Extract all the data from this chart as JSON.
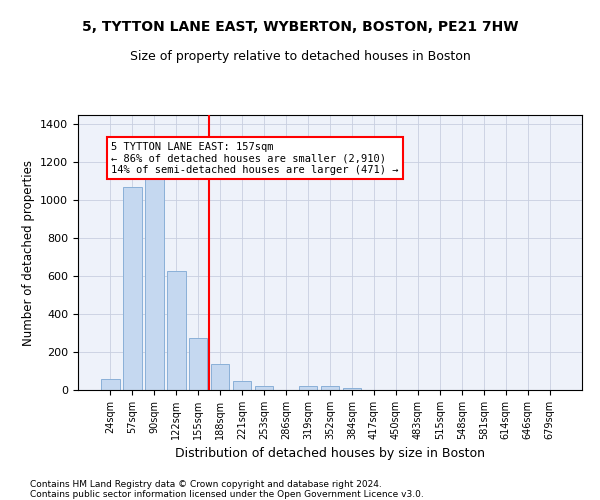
{
  "title_line1": "5, TYTTON LANE EAST, WYBERTON, BOSTON, PE21 7HW",
  "title_line2": "Size of property relative to detached houses in Boston",
  "xlabel": "Distribution of detached houses by size in Boston",
  "ylabel": "Number of detached properties",
  "bar_color": "#c5d8f0",
  "bar_edge_color": "#8ab0d8",
  "categories": [
    "24sqm",
    "57sqm",
    "90sqm",
    "122sqm",
    "155sqm",
    "188sqm",
    "221sqm",
    "253sqm",
    "286sqm",
    "319sqm",
    "352sqm",
    "384sqm",
    "417sqm",
    "450sqm",
    "483sqm",
    "515sqm",
    "548sqm",
    "581sqm",
    "614sqm",
    "646sqm",
    "679sqm"
  ],
  "values": [
    60,
    1070,
    1155,
    630,
    275,
    135,
    45,
    20,
    0,
    20,
    20,
    10,
    0,
    0,
    0,
    0,
    0,
    0,
    0,
    0,
    0
  ],
  "ylim": [
    0,
    1450
  ],
  "yticks": [
    0,
    200,
    400,
    600,
    800,
    1000,
    1200,
    1400
  ],
  "property_line_x": 4.5,
  "annotation_text": "5 TYTTON LANE EAST: 157sqm\n← 86% of detached houses are smaller (2,910)\n14% of semi-detached houses are larger (471) →",
  "footer": "Contains HM Land Registry data © Crown copyright and database right 2024.\nContains public sector information licensed under the Open Government Licence v3.0.",
  "bg_color": "#eef2fa",
  "grid_color": "#c8cfe0"
}
